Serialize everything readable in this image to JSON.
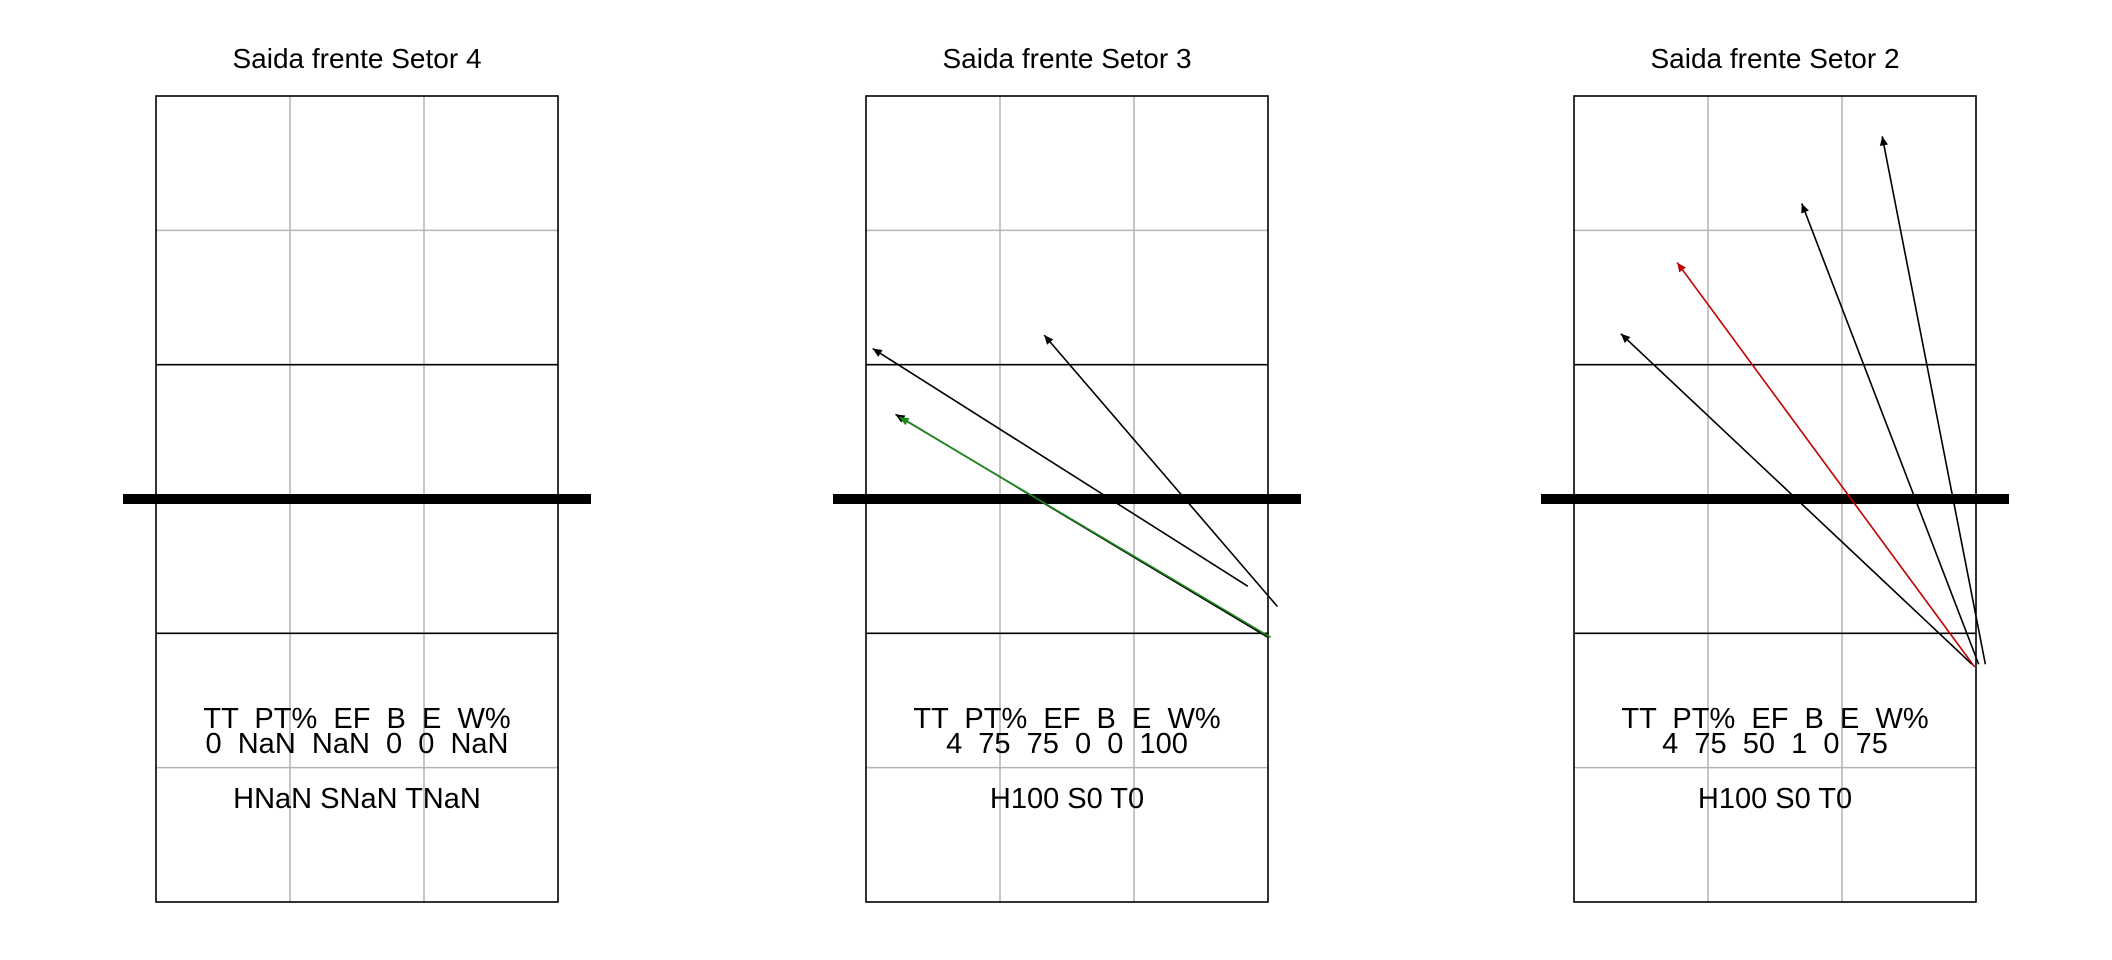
{
  "chart_data": [
    {
      "type": "arrow-diagram",
      "title": "Saida frente Setor 4",
      "stats_header": "TT  PT%  EF  B  E  W%",
      "stats_values": "0  NaN  NaN  0  0  NaN",
      "summary": "HNaN SNaN TNaN",
      "arrows": []
    },
    {
      "type": "arrow-diagram",
      "title": "Saida frente Setor 3",
      "stats_header": "TT  PT%  EF  B  E  W%",
      "stats_values": "4  75  75  0  0  100",
      "summary": "H100 S0 T0",
      "arrows": [
        {
          "from": [
            2.85,
            2.35
          ],
          "to": [
            0.05,
            4.12
          ],
          "color": "#000000"
        },
        {
          "from": [
            3.07,
            2.2
          ],
          "to": [
            1.33,
            4.22
          ],
          "color": "#000000"
        },
        {
          "from": [
            3.0,
            1.97
          ],
          "to": [
            0.22,
            3.63
          ],
          "color": "#000000"
        },
        {
          "from": [
            3.02,
            1.97
          ],
          "to": [
            0.25,
            3.61
          ],
          "color": "#1a8a1a"
        }
      ]
    },
    {
      "type": "arrow-diagram",
      "title": "Saida frente Setor 2",
      "stats_header": "TT  PT%  EF  B  E  W%",
      "stats_values": "4  75  50  1  0  75",
      "summary": "H100 S0 T0",
      "arrows": [
        {
          "from": [
            3.07,
            1.77
          ],
          "to": [
            2.3,
            5.7
          ],
          "color": "#000000"
        },
        {
          "from": [
            3.02,
            1.77
          ],
          "to": [
            1.7,
            5.2
          ],
          "color": "#000000"
        },
        {
          "from": [
            2.97,
            1.77
          ],
          "to": [
            0.35,
            4.23
          ],
          "color": "#000000"
        },
        {
          "from": [
            2.99,
            1.75
          ],
          "to": [
            0.77,
            4.76
          ],
          "color": "#c00000"
        }
      ]
    }
  ]
}
